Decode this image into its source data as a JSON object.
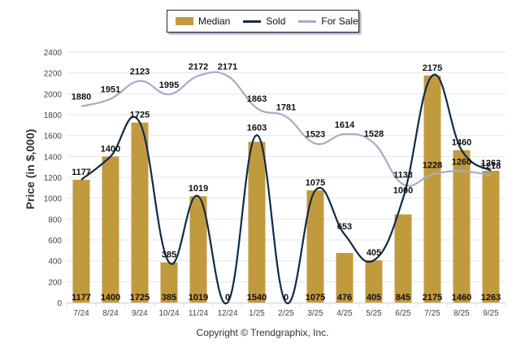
{
  "chart_data": {
    "type": "bar",
    "title": "",
    "xlabel": "",
    "ylabel": "Price (in $,000)",
    "ylim": [
      0,
      2400
    ],
    "yticks": [
      0,
      200,
      400,
      600,
      800,
      1000,
      1200,
      1400,
      1600,
      1800,
      2000,
      2200,
      2400
    ],
    "grid": true,
    "legend_position": "top-center",
    "categories": [
      "7/24",
      "8/24",
      "9/24",
      "10/24",
      "11/24",
      "12/24",
      "1/25",
      "2/25",
      "3/25",
      "4/25",
      "5/25",
      "6/25",
      "7/25",
      "8/25",
      "9/25"
    ],
    "series": [
      {
        "name": "Median",
        "kind": "bar",
        "color": "#C29A3E",
        "values": [
          1177,
          1400,
          1725,
          385,
          1019,
          0,
          1540,
          0,
          1075,
          476,
          405,
          845,
          2175,
          1460,
          1263
        ]
      },
      {
        "name": "Sold",
        "kind": "line",
        "color": "#0F2A4A",
        "values": [
          1177,
          1400,
          1725,
          385,
          1019,
          0,
          1603,
          0,
          1075,
          653,
          405,
          1000,
          2175,
          1460,
          1263
        ]
      },
      {
        "name": "For Sale",
        "kind": "line",
        "color": "#A3ADC8",
        "values": [
          1880,
          1951,
          2123,
          1995,
          2172,
          2171,
          1863,
          1781,
          1523,
          1614,
          1528,
          1133,
          1228,
          1260,
          1218
        ]
      }
    ]
  },
  "legend": {
    "median": "Median",
    "sold": "Sold",
    "for_sale": "For Sale"
  },
  "footer": {
    "copyright": "Copyright © Trendgraphix, Inc."
  }
}
